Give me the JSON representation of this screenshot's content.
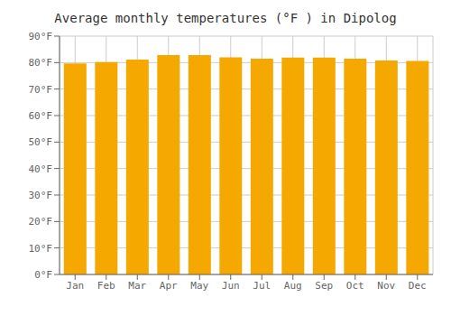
{
  "chart_data": {
    "type": "bar",
    "title": "Average monthly temperatures (°F ) in Dipolog",
    "categories": [
      "Jan",
      "Feb",
      "Mar",
      "Apr",
      "May",
      "Jun",
      "Jul",
      "Aug",
      "Sep",
      "Oct",
      "Nov",
      "Dec"
    ],
    "values": [
      79.7,
      80.2,
      81.1,
      82.8,
      82.8,
      82.0,
      81.5,
      81.9,
      81.9,
      81.5,
      80.8,
      80.6
    ],
    "color": "#F5A800",
    "ylim": [
      0,
      90
    ],
    "yticks": [
      {
        "value": 0,
        "label": "0°F"
      },
      {
        "value": 10,
        "label": "10°F"
      },
      {
        "value": 20,
        "label": "20°F"
      },
      {
        "value": 30,
        "label": "30°F"
      },
      {
        "value": 40,
        "label": "40°F"
      },
      {
        "value": 50,
        "label": "50°F"
      },
      {
        "value": 60,
        "label": "60°F"
      },
      {
        "value": 70,
        "label": "70°F"
      },
      {
        "value": 80,
        "label": "80°F"
      },
      {
        "value": 90,
        "label": "90°F"
      }
    ],
    "grid": true
  }
}
